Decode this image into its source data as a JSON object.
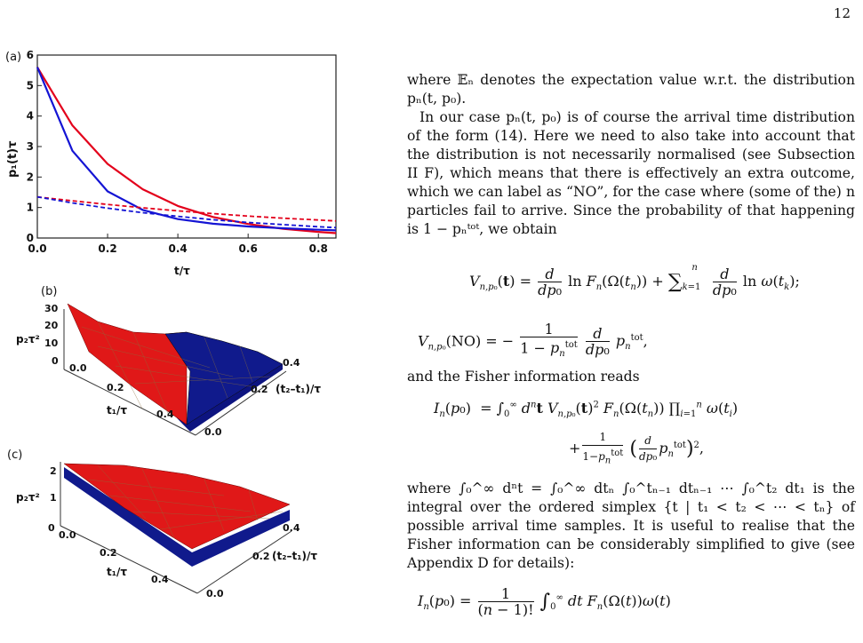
{
  "page_number": "12",
  "figure": {
    "panel_a": {
      "label": "(a)",
      "ylabel": "p₁(t)τ",
      "xlabel": "t/τ",
      "xticks": [
        "0.0",
        "0.2",
        "0.4",
        "0.6",
        "0.8"
      ],
      "yticks": [
        "0",
        "1",
        "2",
        "3",
        "4",
        "5",
        "6"
      ],
      "colors": {
        "red": "#e3001b",
        "blue": "#1414d4"
      }
    },
    "panel_b": {
      "label": "(b)",
      "zlabel": "p₂τ²",
      "zticks": [
        "0",
        "10",
        "20",
        "30"
      ],
      "axis1_label": "t₁/τ",
      "axis1_ticks": [
        "0.0",
        "0.2",
        "0.4"
      ],
      "axis2_label": "(t₂–t₁)/τ",
      "axis2_ticks": [
        "0.0",
        "0.2",
        "0.4"
      ]
    },
    "panel_c": {
      "label": "(c)",
      "zlabel": "p₂τ²",
      "zticks": [
        "0",
        "1",
        "2"
      ],
      "axis1_label": "t₁/τ",
      "axis1_ticks": [
        "0.0",
        "0.2",
        "0.4"
      ],
      "axis2_label": "(t₂–t₁)/τ",
      "axis2_ticks": [
        "0.0",
        "0.2",
        "0.4"
      ]
    }
  },
  "chart_data": {
    "type": "line",
    "xlabel": "t/τ",
    "ylabel": "p₁(t)τ",
    "xlim": [
      0,
      0.85
    ],
    "ylim": [
      0,
      6
    ],
    "series": [
      {
        "style": "solid",
        "color": "#e3001b",
        "x": [
          0,
          0.1,
          0.2,
          0.3,
          0.4,
          0.5,
          0.6,
          0.7,
          0.8,
          0.85
        ],
        "y": [
          5.6,
          3.69,
          2.43,
          1.6,
          1.05,
          0.69,
          0.46,
          0.3,
          0.2,
          0.16
        ]
      },
      {
        "style": "solid",
        "color": "#1414d4",
        "x": [
          0,
          0.1,
          0.2,
          0.3,
          0.4,
          0.5,
          0.6,
          0.7,
          0.8,
          0.85
        ],
        "y": [
          5.6,
          2.86,
          1.53,
          0.92,
          0.62,
          0.47,
          0.38,
          0.32,
          0.27,
          0.25
        ]
      },
      {
        "style": "dashed",
        "color": "#e3001b",
        "x": [
          0,
          0.1,
          0.2,
          0.3,
          0.4,
          0.5,
          0.6,
          0.7,
          0.8,
          0.85
        ],
        "y": [
          1.35,
          1.22,
          1.1,
          0.99,
          0.89,
          0.8,
          0.72,
          0.65,
          0.59,
          0.56
        ]
      },
      {
        "style": "dashed",
        "color": "#1414d4",
        "x": [
          0,
          0.1,
          0.2,
          0.3,
          0.4,
          0.5,
          0.6,
          0.7,
          0.8,
          0.85
        ],
        "y": [
          1.35,
          1.15,
          0.98,
          0.83,
          0.71,
          0.6,
          0.51,
          0.44,
          0.37,
          0.34
        ]
      }
    ]
  },
  "text": {
    "p1": "where 𝔼ₙ denotes the expectation value w.r.t. the distribution pₙ(t, p₀).",
    "p2": "In our case pₙ(t, p₀) is of course the arrival time distribution of the form (14). Here we need to also take into account that the distribution is not necessarily normalised (see Subsection II F), which means that there is effectively an extra outcome, which we can label as “NO”, for the case where (some of the) n particles fail to arrive. Since the probability of that happening is 1 − pₙᵗᵒᵗ, we obtain",
    "p3": "and the Fisher information reads",
    "p4": "where ∫₀^∞ dⁿt = ∫₀^∞ dtₙ ∫₀^tₙ₋₁ dtₙ₋₁ ⋯ ∫₀^t₂ dt₁ is the integral over the ordered simplex {t | t₁ < t₂ < ⋯ < tₙ} of possible arrival time samples. It is useful to realise that the Fisher information can be considerably simplified to give (see Appendix D for details):"
  }
}
